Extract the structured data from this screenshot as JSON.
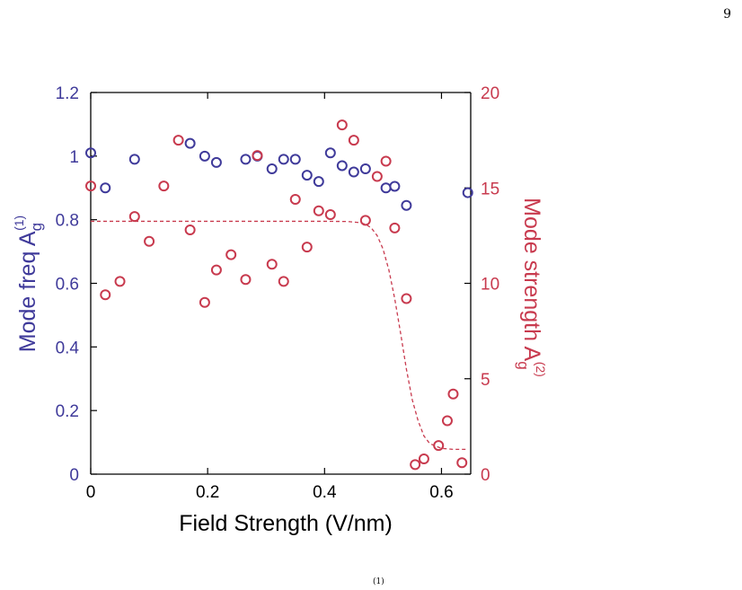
{
  "page": {
    "page_number": "9",
    "footer_fragment": "(1)"
  },
  "colors": {
    "series1": "#3f3a9a",
    "series2": "#c83a4e",
    "axis": "#000000"
  },
  "chart_data": {
    "type": "scatter",
    "xlabel": "Field Strength (V/nm)",
    "ylabel_left": {
      "main": "Mode freq A",
      "sub": "g",
      "sup": "(1)"
    },
    "ylabel_right": {
      "main": "Mode strength A",
      "sub": "g",
      "sup": "(2)"
    },
    "xlim": [
      0,
      0.65
    ],
    "ylim_left": [
      0,
      1.2
    ],
    "ylim_right": [
      0,
      20
    ],
    "x_ticks": [
      "0",
      "0.2",
      "0.4",
      "0.6"
    ],
    "y_left_ticks": [
      "0",
      "0.2",
      "0.4",
      "0.6",
      "0.8",
      "1",
      "1.2"
    ],
    "y_right_ticks": [
      "0",
      "5",
      "10",
      "15",
      "20"
    ],
    "grid": false,
    "series": [
      {
        "axis": "left",
        "marker": "circle",
        "x": [
          0.0,
          0.025,
          0.075,
          0.17,
          0.195,
          0.215,
          0.265,
          0.285,
          0.31,
          0.33,
          0.35,
          0.37,
          0.39,
          0.41,
          0.43,
          0.45,
          0.47,
          0.505,
          0.52,
          0.54,
          0.645
        ],
        "y": [
          1.01,
          0.9,
          0.99,
          1.04,
          1.0,
          0.98,
          0.99,
          1.0,
          0.96,
          0.99,
          0.99,
          0.94,
          0.92,
          1.01,
          0.97,
          0.95,
          0.96,
          0.9,
          0.905,
          0.845,
          0.885
        ]
      },
      {
        "axis": "right",
        "marker": "circle",
        "x": [
          0.0,
          0.025,
          0.05,
          0.075,
          0.1,
          0.125,
          0.15,
          0.17,
          0.195,
          0.215,
          0.24,
          0.265,
          0.285,
          0.31,
          0.33,
          0.35,
          0.37,
          0.39,
          0.41,
          0.43,
          0.45,
          0.47,
          0.49,
          0.505,
          0.52,
          0.54,
          0.555,
          0.57,
          0.595,
          0.61,
          0.62,
          0.635
        ],
        "y": [
          15.1,
          9.4,
          10.1,
          13.5,
          12.2,
          15.1,
          17.5,
          12.8,
          9.0,
          10.7,
          11.5,
          10.2,
          16.7,
          11.0,
          10.1,
          14.4,
          11.9,
          13.8,
          13.6,
          18.3,
          17.5,
          13.3,
          15.6,
          16.4,
          12.9,
          9.2,
          0.5,
          0.8,
          1.5,
          2.8,
          4.2,
          0.6
        ]
      },
      {
        "axis": "right",
        "type": "line",
        "style": "dashed",
        "x": [
          0.0,
          0.1,
          0.2,
          0.3,
          0.4,
          0.44,
          0.46,
          0.47,
          0.48,
          0.49,
          0.5,
          0.51,
          0.52,
          0.53,
          0.54,
          0.55,
          0.56,
          0.57,
          0.58,
          0.6,
          0.62,
          0.645
        ],
        "y": [
          13.25,
          13.25,
          13.25,
          13.25,
          13.25,
          13.24,
          13.18,
          13.1,
          12.9,
          12.5,
          11.8,
          10.7,
          9.2,
          7.4,
          5.5,
          3.9,
          2.8,
          2.0,
          1.6,
          1.35,
          1.3,
          1.3
        ]
      }
    ]
  }
}
